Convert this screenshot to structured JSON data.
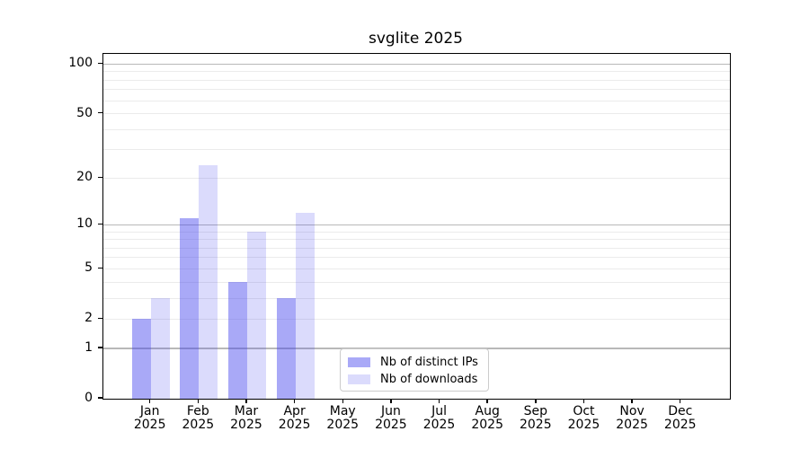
{
  "chart_data": {
    "type": "bar",
    "title": "svglite 2025",
    "x_tick_year": "2025",
    "categories": [
      "Jan",
      "Feb",
      "Mar",
      "Apr",
      "May",
      "Jun",
      "Jul",
      "Aug",
      "Sep",
      "Oct",
      "Nov",
      "Dec"
    ],
    "series": [
      {
        "name": "Nb of distinct IPs",
        "color": "rgba(64,64,238,0.45)",
        "values": [
          2,
          11,
          4,
          3,
          0,
          0,
          0,
          0,
          0,
          0,
          0,
          0
        ]
      },
      {
        "name": "Nb of downloads",
        "color": "rgba(64,64,238,0.19)",
        "values": [
          3,
          24,
          9,
          12,
          0,
          0,
          0,
          0,
          0,
          0,
          0,
          0
        ]
      }
    ],
    "xlabel": "",
    "ylabel": "",
    "y_scale": "log1p",
    "y_ticks": [
      0,
      1,
      2,
      5,
      10,
      20,
      50,
      100
    ],
    "ylim": [
      0,
      115
    ],
    "grid": {
      "major_values": [
        1,
        10,
        100
      ],
      "minor_values": [
        2,
        3,
        4,
        5,
        6,
        7,
        8,
        9,
        20,
        30,
        40,
        50,
        60,
        70,
        80,
        90
      ],
      "major_color": "#b8b8b8",
      "minor_color": "#ebebeb"
    },
    "legend_position": "lower center",
    "frame_color": "#000000",
    "background_color": "#ffffff"
  }
}
